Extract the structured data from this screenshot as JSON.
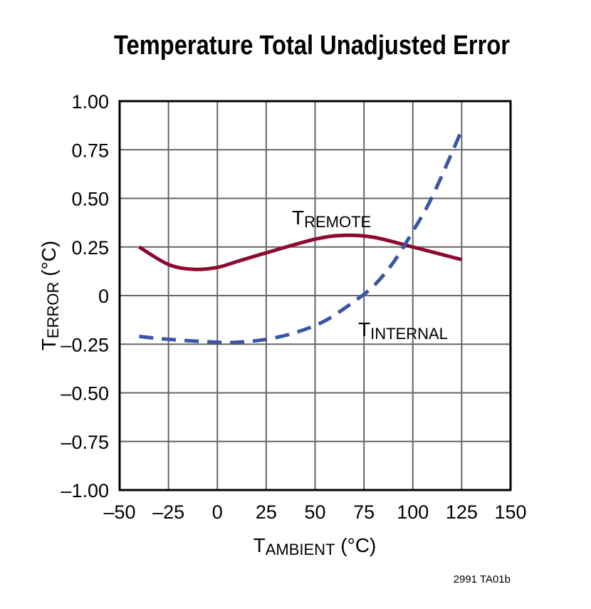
{
  "chart_data": {
    "type": "line",
    "title": "Temperature Total Unadjusted Error",
    "xlabel": {
      "main": "T",
      "sub": "AMBIENT",
      "unit": " (°C)"
    },
    "ylabel": {
      "main": "T",
      "sub": "ERROR",
      "unit": " (°C)"
    },
    "xlim": [
      -50,
      150
    ],
    "ylim": [
      -1.0,
      1.0
    ],
    "grid": true,
    "x_ticks": [
      -50,
      -25,
      0,
      25,
      50,
      75,
      100,
      125,
      150
    ],
    "x_tick_labels": [
      "–50",
      "–25",
      "0",
      "25",
      "50",
      "75",
      "100",
      "125",
      "150"
    ],
    "y_ticks": [
      1.0,
      0.75,
      0.5,
      0.25,
      0,
      -0.25,
      -0.5,
      -0.75,
      -1.0
    ],
    "y_tick_labels": [
      "1.00",
      "0.75",
      "0.50",
      "0.25",
      "0",
      "–0.25",
      "–0.50",
      "–0.75",
      "–1.00"
    ],
    "series": [
      {
        "name": "REMOTE",
        "label_main": "T",
        "label_sub": "REMOTE",
        "color": "#8b0a2e",
        "style": "solid",
        "x": [
          -40,
          -25,
          -12,
          0,
          10,
          25,
          50,
          65,
          80,
          100,
          125
        ],
        "y": [
          0.25,
          0.16,
          0.135,
          0.145,
          0.175,
          0.22,
          0.29,
          0.31,
          0.3,
          0.25,
          0.185
        ]
      },
      {
        "name": "INTERNAL",
        "label_main": "T",
        "label_sub": "INTERNAL",
        "color": "#3a55a6",
        "style": "dashed",
        "x": [
          -40,
          -25,
          0,
          10,
          25,
          40,
          55,
          70,
          80,
          90,
          100,
          110,
          125
        ],
        "y": [
          -0.21,
          -0.225,
          -0.24,
          -0.24,
          -0.225,
          -0.19,
          -0.13,
          -0.03,
          0.05,
          0.17,
          0.33,
          0.51,
          0.85
        ]
      }
    ],
    "annotation": "2991 TA01b"
  }
}
